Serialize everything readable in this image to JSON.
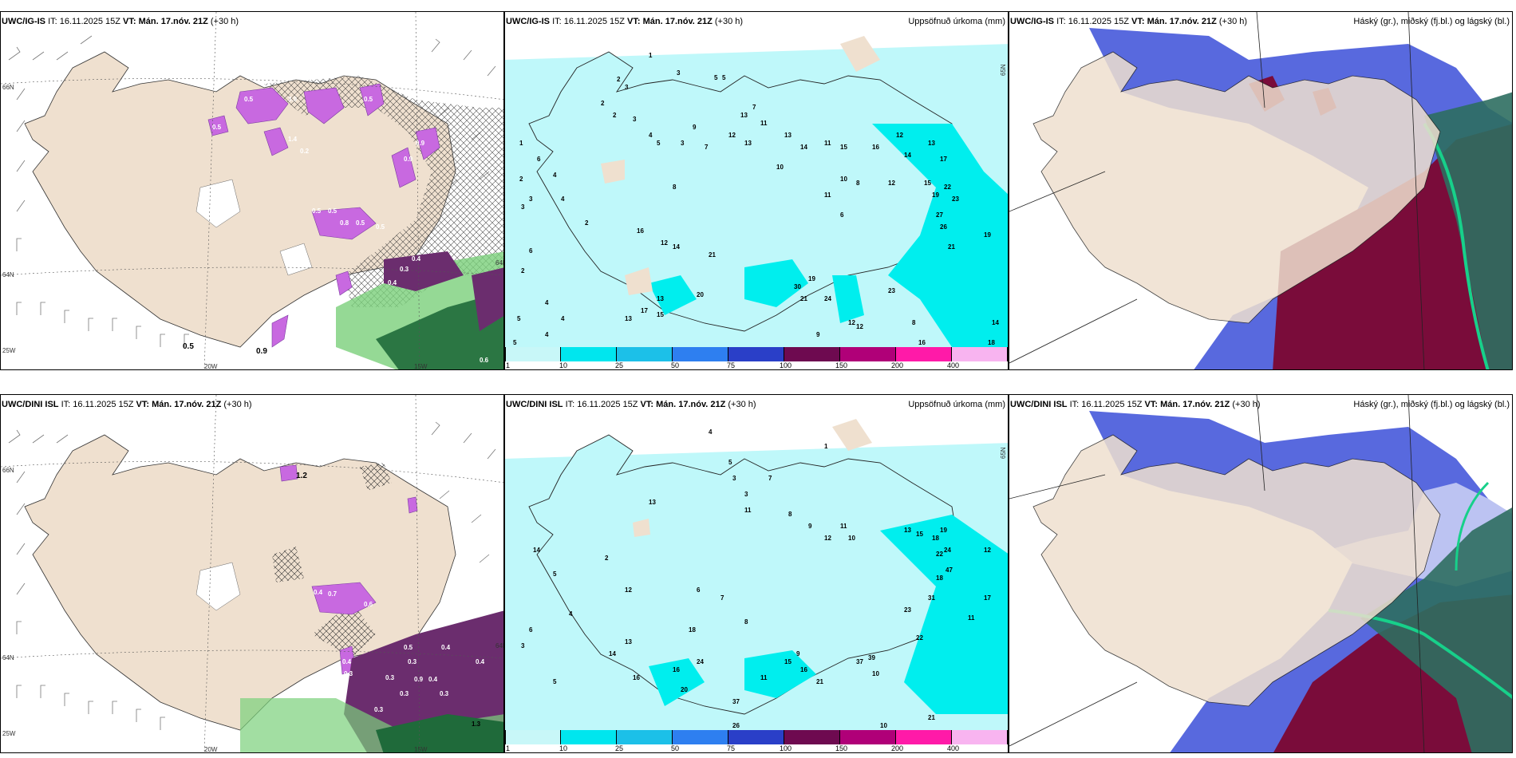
{
  "panels": [
    {
      "id": "p1",
      "model": "UWC/IG-IS",
      "it_label": "IT: 16.11.2025 15Z",
      "vt_label": "VT: Mán. 17.nóv. 21Z",
      "lead": "(+30 h)",
      "right_title": "",
      "axis": {
        "lat1": "66N",
        "lat2": "64N",
        "lat3": "25W",
        "lon1": "20W",
        "lon2": "15W",
        "lat4": "64N"
      },
      "precip": [
        "0.5",
        "0.9",
        "3.9",
        "0.5",
        "0.5",
        "0.5",
        "0.9",
        "0.5",
        "1.4",
        "0.2",
        "0.5",
        "0.5",
        "0.8",
        "0.5",
        "0.4",
        "0.3",
        "0.4",
        "0.6",
        "0.9"
      ]
    },
    {
      "id": "p2",
      "model": "UWC/IG-IS",
      "it_label": "IT: 16.11.2025 15Z",
      "vt_label": "VT: Mán. 17.nóv. 21Z",
      "lead": "(+30 h)",
      "right_title": "Uppsöfnuð úrkoma (mm)",
      "axis": {
        "lat1": "65N"
      },
      "numbers": [
        "1",
        "3",
        "5",
        "5",
        "2",
        "3",
        "2",
        "2",
        "3",
        "4",
        "5",
        "3",
        "7",
        "7",
        "9",
        "12",
        "13",
        "11",
        "13",
        "14",
        "13",
        "11",
        "10",
        "15",
        "16",
        "6",
        "8",
        "12",
        "12",
        "14",
        "13",
        "17",
        "15",
        "19",
        "22",
        "23",
        "27",
        "26",
        "21",
        "19",
        "14",
        "18",
        "16",
        "20",
        "30",
        "19",
        "21",
        "24",
        "23",
        "12",
        "8",
        "9",
        "10",
        "11",
        "14",
        "16",
        "13",
        "17",
        "15",
        "21",
        "12",
        "2",
        "2",
        "3",
        "4",
        "5",
        "6",
        "4",
        "3",
        "5",
        "4",
        "4",
        "2",
        "1",
        "6",
        "4",
        "8",
        "13",
        "12"
      ]
    },
    {
      "id": "p3",
      "model": "UWC/IG-IS",
      "it_label": "IT: 16.11.2025 15Z",
      "vt_label": "VT: Mán. 17.nóv. 21Z",
      "lead": "(+30 h)",
      "right_title": "Háský (gr.), miðský (fj.bl.) og lágský (bl.)"
    },
    {
      "id": "p4",
      "model": "UWC/DINI ISL",
      "it_label": "IT: 16.11.2025 15Z",
      "vt_label": "VT: Mán. 17.nóv. 21Z",
      "lead": "(+30 h)",
      "right_title": "",
      "axis": {
        "lat1": "66N",
        "lat2": "64N",
        "lat3": "25W",
        "lon1": "20W",
        "lon2": "15W",
        "lat4": "64N"
      },
      "precip": [
        "1.2",
        "0.4",
        "0.7",
        "0.6",
        "0.4",
        "0.3",
        "0.5",
        "0.3",
        "0.4",
        "0.9",
        "0.4",
        "0.3",
        "0.3",
        "0.4",
        "0.3",
        "0.3",
        "1.3"
      ]
    },
    {
      "id": "p5",
      "model": "UWC/DINI ISL",
      "it_label": "IT: 16.11.2025 15Z",
      "vt_label": "VT: Mán. 17.nóv. 21Z",
      "lead": "(+30 h)",
      "right_title": "Uppsöfnuð úrkoma (mm)",
      "axis": {
        "lat1": "65N"
      },
      "numbers": [
        "1",
        "4",
        "5",
        "3",
        "3",
        "7",
        "11",
        "13",
        "8",
        "9",
        "12",
        "10",
        "11",
        "13",
        "15",
        "18",
        "19",
        "22",
        "24",
        "47",
        "17",
        "12",
        "11",
        "23",
        "22",
        "31",
        "18",
        "37",
        "39",
        "26",
        "21",
        "21",
        "18",
        "10",
        "6",
        "13",
        "14",
        "16",
        "20",
        "24",
        "16",
        "18",
        "16",
        "15",
        "11",
        "37",
        "10",
        "9",
        "8",
        "7",
        "6",
        "5",
        "4",
        "3",
        "2",
        "12",
        "14",
        "5",
        "6"
      ]
    },
    {
      "id": "p6",
      "model": "UWC/DINI ISL",
      "it_label": "IT: 16.11.2025 15Z",
      "vt_label": "VT: Mán. 17.nóv. 21Z",
      "lead": "(+30 h)",
      "right_title": "Háský (gr.), miðský (fj.bl.) og lágský (bl.)"
    }
  ],
  "legend": {
    "labels": [
      "1",
      "10",
      "25",
      "50",
      "75",
      "100",
      "150",
      "200",
      "400"
    ],
    "colors": [
      "#c8f7f8",
      "#00e6ee",
      "#1cc0e8",
      "#2e7ff0",
      "#2a3fc8",
      "#6e0a50",
      "#b00078",
      "#ff1aa8",
      "#f8b4f0"
    ]
  },
  "colors": {
    "land": "#efe0cf",
    "light_cyan": "#bff8fa",
    "cyan": "#00eeee",
    "purple_snow": "#c869e0",
    "green_rain": "#7bd07b",
    "dark_green": "#1f6a3a",
    "blue_cloud": "#3b4fd8",
    "dark_red_cloud": "#7a0c3a",
    "teal_cloud": "#2e6e60"
  }
}
